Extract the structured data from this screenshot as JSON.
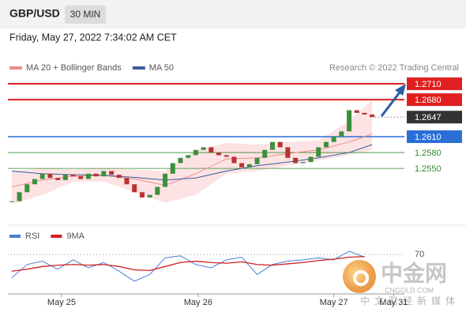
{
  "header": {
    "pair": "GBP/USD",
    "timeframe": "30 MIN"
  },
  "timestamp": "Friday, May 27, 2022 7:34:02 AM CET",
  "chart_data": [
    {
      "type": "candlestick",
      "credit": "Research © 2022 Trading Central",
      "values": [
        1.2488,
        1.2505,
        1.252,
        1.253,
        1.254,
        1.2532,
        1.2528,
        1.2538,
        1.2535,
        1.253,
        1.254,
        1.2535,
        1.2545,
        1.2538,
        1.2532,
        1.252,
        1.2505,
        1.2495,
        1.25,
        1.2515,
        1.254,
        1.256,
        1.257,
        1.2575,
        1.2585,
        1.259,
        1.258,
        1.2575,
        1.2572,
        1.256,
        1.2552,
        1.2558,
        1.257,
        1.2585,
        1.26,
        1.259,
        1.257,
        1.256,
        1.2562,
        1.2572,
        1.259,
        1.26,
        1.261,
        1.262,
        1.266,
        1.2655,
        1.2652,
        1.2647
      ],
      "up_color": "#3d8f3d",
      "down_color": "#b83232",
      "series": [
        {
          "name": "MA 20 + Bollinger Bands",
          "color": "#f08a8a",
          "band_color": "#fde3e3",
          "x": [
            0,
            4,
            8,
            12,
            16,
            20,
            24,
            28,
            32,
            36,
            40,
            44,
            47
          ],
          "values": [
            1.2515,
            1.2528,
            1.2535,
            1.2537,
            1.253,
            1.2518,
            1.254,
            1.2568,
            1.257,
            1.2578,
            1.2585,
            1.26,
            1.2615
          ],
          "upper": [
            1.2545,
            1.255,
            1.2548,
            1.255,
            1.2548,
            1.2545,
            1.2585,
            1.2598,
            1.2595,
            1.26,
            1.2603,
            1.264,
            1.268
          ],
          "lower": [
            1.2482,
            1.25,
            1.2525,
            1.2525,
            1.2505,
            1.2485,
            1.25,
            1.254,
            1.2545,
            1.2555,
            1.2565,
            1.2575,
            1.2585
          ]
        },
        {
          "name": "MA 50",
          "color": "#3b5b9a",
          "x": [
            0,
            4,
            8,
            12,
            16,
            20,
            24,
            28,
            32,
            36,
            40,
            44,
            47
          ],
          "values": [
            1.2545,
            1.254,
            1.2538,
            1.2537,
            1.2533,
            1.2528,
            1.2532,
            1.2545,
            1.2555,
            1.2562,
            1.257,
            1.258,
            1.2595
          ]
        }
      ],
      "levels": [
        {
          "value": 1.271,
          "label": "1.2710",
          "color": "#e02020",
          "boxed": true
        },
        {
          "value": 1.268,
          "label": "1.2680",
          "color": "#e02020",
          "boxed": true
        },
        {
          "value": 1.261,
          "label": "1.2610",
          "color": "#2a6fd6",
          "boxed": true
        },
        {
          "value": 1.258,
          "label": "1.2580",
          "color": "#2e8b2e",
          "boxed": false
        },
        {
          "value": 1.255,
          "label": "1.2550",
          "color": "#2e8b2e",
          "boxed": false
        }
      ],
      "last_price": {
        "value": 1.2647,
        "label": "1.2647",
        "color": "#333333"
      },
      "xlim": [
        -0.5,
        51
      ],
      "xticks": [
        {
          "value": 6.5,
          "label": "May 25"
        },
        {
          "value": 24.3,
          "label": "May 26"
        },
        {
          "value": 42,
          "label": "May 27"
        },
        {
          "value": 49.8,
          "label": "May 31"
        }
      ],
      "ylim": [
        1.248,
        1.2728
      ]
    },
    {
      "type": "line",
      "series": [
        {
          "name": "RSI",
          "color": "#4a7fd4",
          "x": [
            0,
            2,
            4,
            6,
            8,
            10,
            12,
            14,
            16,
            18,
            20,
            22,
            24,
            26,
            28,
            30,
            32,
            34,
            36,
            38,
            40,
            42,
            44,
            46
          ],
          "values": [
            35,
            55,
            60,
            48,
            62,
            50,
            58,
            45,
            30,
            40,
            65,
            68,
            55,
            50,
            62,
            66,
            40,
            55,
            60,
            62,
            65,
            62,
            75,
            66
          ]
        },
        {
          "name": "9MA",
          "color": "#d02020",
          "x": [
            0,
            2,
            4,
            6,
            8,
            10,
            12,
            14,
            16,
            18,
            20,
            22,
            24,
            26,
            28,
            30,
            32,
            34,
            36,
            38,
            40,
            42,
            44,
            46
          ],
          "values": [
            45,
            48,
            52,
            54,
            55,
            54,
            55,
            52,
            47,
            46,
            52,
            58,
            60,
            58,
            57,
            59,
            55,
            54,
            56,
            58,
            61,
            63,
            66,
            67
          ]
        }
      ],
      "xlim": [
        -0.5,
        51
      ],
      "ylim": [
        5,
        95
      ],
      "yticks": [
        70
      ]
    }
  ],
  "watermark": {
    "brand": "中金网",
    "site": "CNGOLD.COM",
    "slogan": "中文财经新媒体"
  }
}
